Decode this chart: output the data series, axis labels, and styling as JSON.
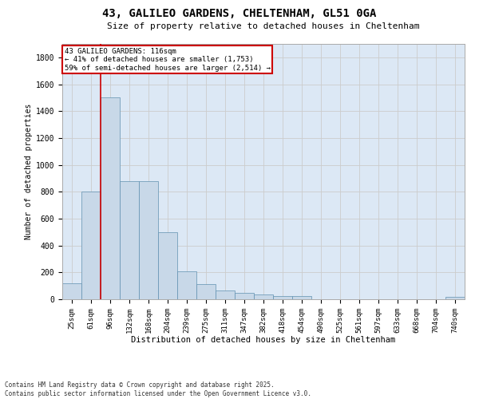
{
  "title1": "43, GALILEO GARDENS, CHELTENHAM, GL51 0GA",
  "title2": "Size of property relative to detached houses in Cheltenham",
  "xlabel": "Distribution of detached houses by size in Cheltenham",
  "ylabel": "Number of detached properties",
  "categories": [
    "25sqm",
    "61sqm",
    "96sqm",
    "132sqm",
    "168sqm",
    "204sqm",
    "239sqm",
    "275sqm",
    "311sqm",
    "347sqm",
    "382sqm",
    "418sqm",
    "454sqm",
    "490sqm",
    "525sqm",
    "561sqm",
    "597sqm",
    "633sqm",
    "668sqm",
    "704sqm",
    "740sqm"
  ],
  "values": [
    120,
    800,
    1500,
    880,
    880,
    500,
    210,
    110,
    65,
    45,
    35,
    25,
    25,
    0,
    0,
    0,
    0,
    0,
    0,
    0,
    15
  ],
  "bar_color": "#c8d8e8",
  "bar_edge_color": "#6090b0",
  "red_line_index": 2,
  "annotation_text": "43 GALILEO GARDENS: 116sqm\n← 41% of detached houses are smaller (1,753)\n59% of semi-detached houses are larger (2,514) →",
  "annotation_box_color": "#ffffff",
  "annotation_box_edge_color": "#cc0000",
  "ylim": [
    0,
    1900
  ],
  "yticks": [
    0,
    200,
    400,
    600,
    800,
    1000,
    1200,
    1400,
    1600,
    1800
  ],
  "grid_color": "#cccccc",
  "background_color": "#dce8f5",
  "footer_text": "Contains HM Land Registry data © Crown copyright and database right 2025.\nContains public sector information licensed under the Open Government Licence v3.0.",
  "red_line_color": "#cc0000",
  "fig_width": 6.0,
  "fig_height": 5.0,
  "dpi": 100
}
